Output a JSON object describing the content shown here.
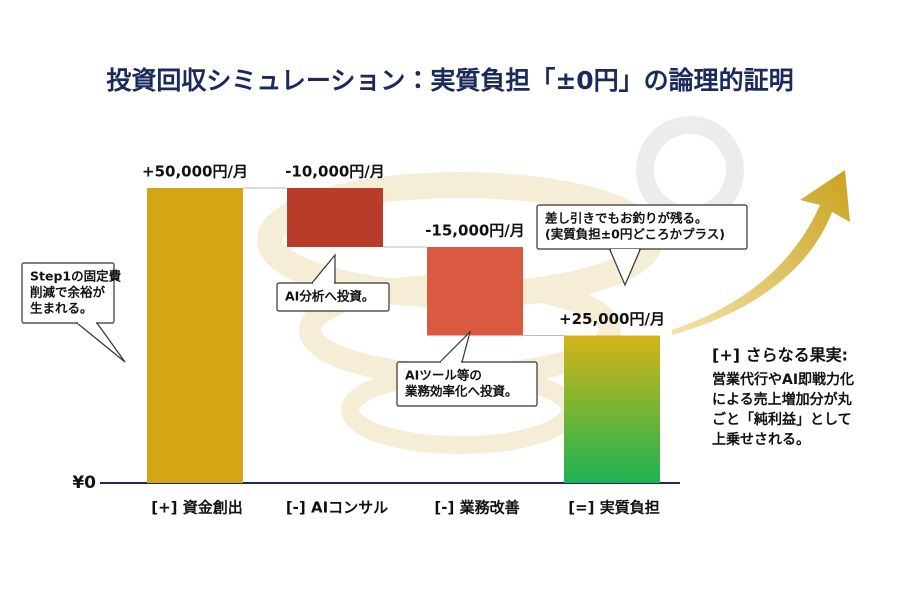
{
  "chart_data": {
    "type": "waterfall",
    "title": "投資回収シミュレーション：実質負担「±0円」の論理的証明",
    "categories": [
      "[+] 資金創出",
      "[-] AIコンサル",
      "[-] 業務改善",
      "[=] 実質負担"
    ],
    "values": [
      50000,
      -10000,
      -15000,
      25000
    ],
    "value_labels": [
      "+50,000円/月",
      "-10,000円/月",
      "-15,000円/月",
      "+25,000円/月"
    ],
    "colors": [
      "#d4a514",
      "#b93c2b",
      "#d95a40",
      "#22b04e"
    ],
    "ylim": [
      0,
      50000
    ],
    "yticks": [
      {
        "value": 0,
        "label": "¥0"
      }
    ],
    "callouts": [
      [
        "Step1の固定費",
        "削減で余裕が",
        "生まれる。"
      ],
      [
        "AI分析へ投資。"
      ],
      [
        "AIツール等の",
        "業務効率化へ投資。"
      ],
      [
        "差し引きでもお釣りが残る。",
        "(実質負担±0円どころかプラス)"
      ]
    ],
    "side_note": {
      "heading": "[+] さらなる果実:",
      "lines": [
        "営業代行やAI即戦力化",
        "による売上増加分が丸",
        "ごと「純利益」として",
        "上乗せされる。"
      ]
    }
  }
}
